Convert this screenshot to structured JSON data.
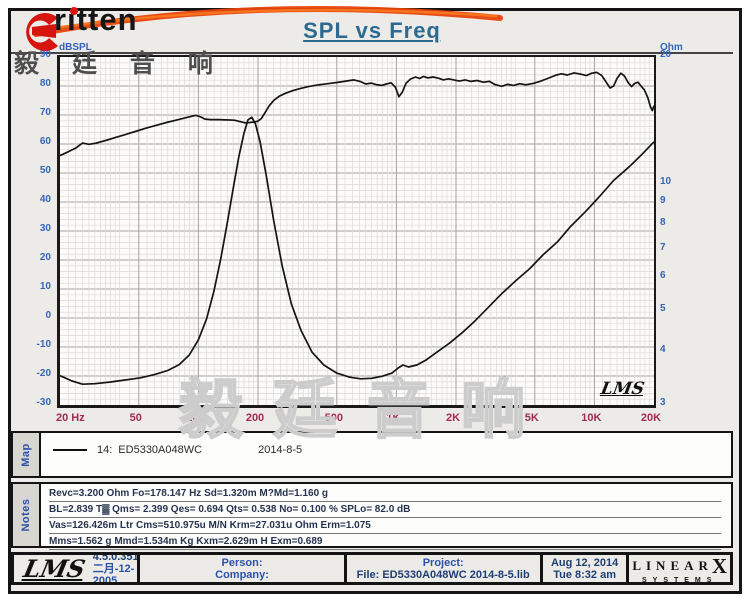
{
  "title": "SPL vs Freq",
  "logo": {
    "brand": "ritten",
    "brand_cn": "毅 廷 音 响"
  },
  "watermark": "毅廷音响",
  "plot_mark": "LMS",
  "chart_data": {
    "type": "line",
    "title": "SPL vs Freq",
    "x_axis": {
      "label": "Hz",
      "scale": "log",
      "range": [
        20,
        20000
      ],
      "tick_values": [
        20,
        50,
        100,
        200,
        500,
        1000,
        2000,
        5000,
        10000,
        20000
      ],
      "tick_labels": [
        "20 Hz",
        "50",
        "100",
        "200",
        "500",
        "1K",
        "2K",
        "5K",
        "10K",
        "20K"
      ]
    },
    "y_axis_left": {
      "label": "dBSPL",
      "scale": "linear",
      "range": [
        -30,
        90
      ],
      "ticks": [
        90,
        80,
        70,
        60,
        50,
        40,
        30,
        20,
        10,
        0,
        -10,
        -20,
        -30
      ],
      "minor_step": 2
    },
    "y_axis_right": {
      "label": "Ohm",
      "scale": "log",
      "range": [
        3,
        20
      ],
      "ticks": [
        20,
        10,
        9,
        8,
        7,
        6,
        5,
        4,
        3
      ]
    },
    "grid": {
      "horizontal": "on",
      "vertical": "log-subdivisions"
    },
    "legend_entry": "14: ED5330A048WC   2014-8-5",
    "series": [
      {
        "name": "SPL",
        "unit": "dB",
        "axis": "left",
        "color": "#141414",
        "points": [
          [
            20,
            56
          ],
          [
            22,
            57.3
          ],
          [
            24,
            58.6
          ],
          [
            26,
            60.3
          ],
          [
            28,
            59.9
          ],
          [
            30,
            60.2
          ],
          [
            34,
            61.2
          ],
          [
            38,
            62.2
          ],
          [
            43,
            63.3
          ],
          [
            48,
            64.3
          ],
          [
            54,
            65.4
          ],
          [
            61,
            66.4
          ],
          [
            69,
            67.4
          ],
          [
            78,
            68.3
          ],
          [
            88,
            69.2
          ],
          [
            97,
            69.9
          ],
          [
            103,
            69.3
          ],
          [
            108,
            68.6
          ],
          [
            115,
            68.4
          ],
          [
            125,
            68.4
          ],
          [
            138,
            68.3
          ],
          [
            152,
            68.2
          ],
          [
            163,
            67.7
          ],
          [
            172,
            67.3
          ],
          [
            182,
            67.4
          ],
          [
            192,
            67.6
          ],
          [
            200,
            67.9
          ],
          [
            208,
            68.8
          ],
          [
            218,
            71
          ],
          [
            228,
            73.2
          ],
          [
            240,
            75
          ],
          [
            255,
            76.4
          ],
          [
            275,
            77.5
          ],
          [
            300,
            78.4
          ],
          [
            330,
            79.2
          ],
          [
            365,
            79.9
          ],
          [
            405,
            80.4
          ],
          [
            450,
            80.8
          ],
          [
            500,
            81.2
          ],
          [
            555,
            81.7
          ],
          [
            610,
            82.1
          ],
          [
            655,
            81.6
          ],
          [
            700,
            80.7
          ],
          [
            745,
            81
          ],
          [
            790,
            80.5
          ],
          [
            840,
            80.2
          ],
          [
            890,
            80.7
          ],
          [
            940,
            81.1
          ],
          [
            990,
            79.5
          ],
          [
            1030,
            76.3
          ],
          [
            1070,
            77.8
          ],
          [
            1120,
            81
          ],
          [
            1180,
            82.4
          ],
          [
            1250,
            83.1
          ],
          [
            1310,
            82.6
          ],
          [
            1370,
            83.3
          ],
          [
            1440,
            82.8
          ],
          [
            1530,
            83.1
          ],
          [
            1630,
            82.7
          ],
          [
            1730,
            82.1
          ],
          [
            1830,
            82.5
          ],
          [
            1950,
            82.1
          ],
          [
            2080,
            81.7
          ],
          [
            2220,
            82.1
          ],
          [
            2380,
            81.6
          ],
          [
            2550,
            81.9
          ],
          [
            2750,
            81.3
          ],
          [
            2950,
            81.6
          ],
          [
            3150,
            80.5
          ],
          [
            3400,
            79.9
          ],
          [
            3650,
            80.6
          ],
          [
            3900,
            80.2
          ],
          [
            4200,
            80.8
          ],
          [
            4500,
            80.4
          ],
          [
            4900,
            80.9
          ],
          [
            5300,
            81.6
          ],
          [
            5800,
            82.6
          ],
          [
            6300,
            83.6
          ],
          [
            6800,
            84.2
          ],
          [
            7300,
            83.8
          ],
          [
            7900,
            84.5
          ],
          [
            8500,
            84.1
          ],
          [
            9100,
            83.6
          ],
          [
            9700,
            84.4
          ],
          [
            10300,
            84.7
          ],
          [
            10900,
            83.6
          ],
          [
            11500,
            81.2
          ],
          [
            12000,
            79.3
          ],
          [
            12500,
            80
          ],
          [
            13000,
            82.6
          ],
          [
            13600,
            84.4
          ],
          [
            14200,
            83.4
          ],
          [
            14800,
            81.2
          ],
          [
            15400,
            79.8
          ],
          [
            16000,
            80.9
          ],
          [
            16600,
            81.3
          ],
          [
            17200,
            80
          ],
          [
            17900,
            78.6
          ],
          [
            18600,
            76
          ],
          [
            19200,
            72.8
          ],
          [
            19600,
            71.5
          ],
          [
            20000,
            73.2
          ]
        ]
      },
      {
        "name": "Impedance",
        "unit": "Ohm",
        "axis": "right",
        "color": "#141414",
        "points": [
          [
            20,
            3.52
          ],
          [
            23,
            3.42
          ],
          [
            26,
            3.36
          ],
          [
            30,
            3.37
          ],
          [
            36,
            3.4
          ],
          [
            43,
            3.44
          ],
          [
            51,
            3.48
          ],
          [
            60,
            3.54
          ],
          [
            70,
            3.62
          ],
          [
            80,
            3.74
          ],
          [
            90,
            3.94
          ],
          [
            100,
            4.28
          ],
          [
            110,
            4.8
          ],
          [
            120,
            5.6
          ],
          [
            130,
            6.7
          ],
          [
            140,
            8.1
          ],
          [
            150,
            9.8
          ],
          [
            160,
            11.6
          ],
          [
            170,
            13.2
          ],
          [
            178,
            14.2
          ],
          [
            186,
            14.4
          ],
          [
            194,
            13.9
          ],
          [
            205,
            12.6
          ],
          [
            220,
            10.5
          ],
          [
            240,
            8.2
          ],
          [
            265,
            6.4
          ],
          [
            295,
            5.2
          ],
          [
            330,
            4.5
          ],
          [
            375,
            4
          ],
          [
            430,
            3.73
          ],
          [
            500,
            3.57
          ],
          [
            580,
            3.49
          ],
          [
            660,
            3.46
          ],
          [
            750,
            3.47
          ],
          [
            850,
            3.51
          ],
          [
            950,
            3.57
          ],
          [
            1020,
            3.67
          ],
          [
            1080,
            3.73
          ],
          [
            1150,
            3.69
          ],
          [
            1270,
            3.73
          ],
          [
            1420,
            3.84
          ],
          [
            1600,
            4
          ],
          [
            1850,
            4.2
          ],
          [
            2150,
            4.45
          ],
          [
            2500,
            4.75
          ],
          [
            2900,
            5.1
          ],
          [
            3400,
            5.5
          ],
          [
            4000,
            5.9
          ],
          [
            4700,
            6.3
          ],
          [
            5500,
            6.8
          ],
          [
            6500,
            7.3
          ],
          [
            7500,
            7.9
          ],
          [
            9000,
            8.6
          ],
          [
            10500,
            9.3
          ],
          [
            12500,
            10.2
          ],
          [
            15000,
            11
          ],
          [
            17500,
            11.8
          ],
          [
            20000,
            12.6
          ]
        ]
      }
    ]
  },
  "map": {
    "label": "Map",
    "legend": {
      "id": "14:",
      "name": "ED5330A048WC",
      "date": "2014-8-5"
    }
  },
  "notes": {
    "label": "Notes",
    "lines": [
      "Revc=3.200 Ohm  Fo=178.147 Hz  Sd=1.320m M?Md=1.160 g",
      "BL=2.839 T▓  Qms= 2.399  Qes= 0.694  Qts= 0.538  No= 0.100 %  SPLo= 82.0 dB",
      "Vas=126.426m Ltr  Cms=510.975u M/N  Krm=27.031u Ohm  Erm=1.075",
      "Mms=1.562 g  Mmd=1.534m Kg  Kxm=2.629m H  Exm=0.689"
    ]
  },
  "footer": {
    "logo": "LMS",
    "version": "4.5.0.351",
    "build_date": "二月-12-2005",
    "person_label": "Person:",
    "company_label": "Company:",
    "project_label": "Project:",
    "file_line": "File: ED5330A048WC   2014-8-5.lib",
    "date": "Aug 12, 2014",
    "time": "Tue  8:32 am",
    "brand_main": "LINEAR",
    "brand_x": "X",
    "brand_sub": "SYSTEMS"
  }
}
